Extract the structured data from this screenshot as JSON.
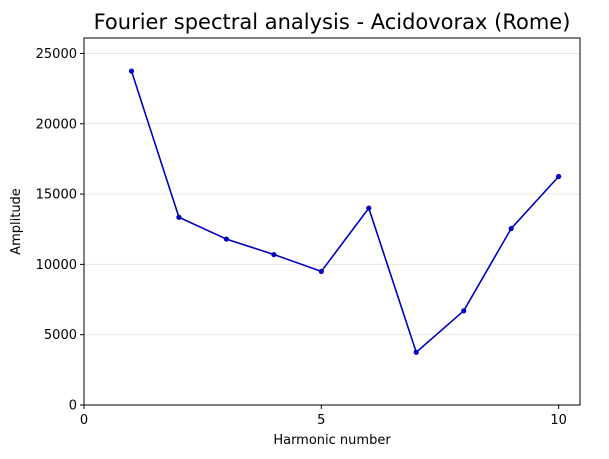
{
  "chart_data": {
    "type": "line",
    "title": "Fourier spectral analysis - Acidovorax (Rome)",
    "xlabel": "Harmonic number",
    "ylabel": "Amplitude",
    "xlim": [
      0,
      10.45
    ],
    "ylim": [
      0,
      26100
    ],
    "xticks": [
      0,
      5,
      10
    ],
    "yticks": [
      0,
      5000,
      10000,
      15000,
      20000,
      25000
    ],
    "grid": "horizontal",
    "series": [
      {
        "color": "#0000bf",
        "x": [
          1,
          2,
          3,
          4,
          5,
          6,
          7,
          8,
          9,
          10
        ],
        "y": [
          23750,
          13350,
          11800,
          10700,
          9500,
          14000,
          3750,
          6700,
          12550,
          16250
        ]
      }
    ]
  }
}
